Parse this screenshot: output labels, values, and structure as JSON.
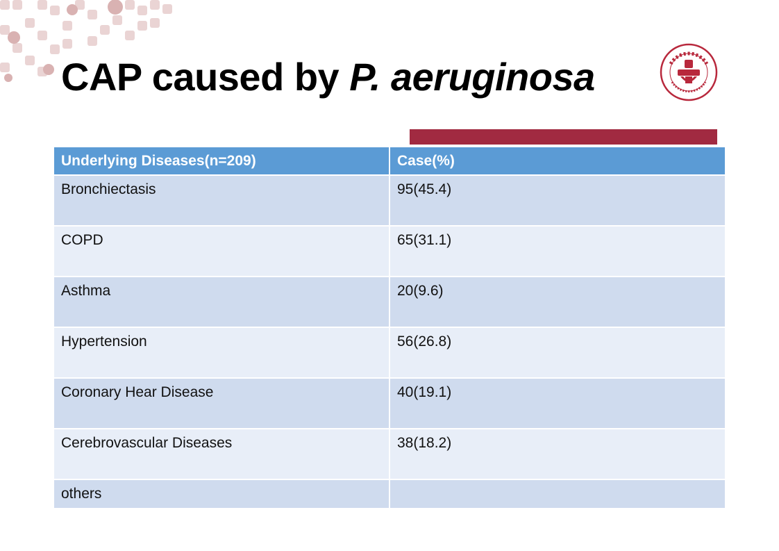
{
  "slide": {
    "title_main": "CAP caused by ",
    "title_italic": "P. aeruginosa",
    "logo_icon": "hospital-logo-icon",
    "accent_color": "#a12a41",
    "header_color": "#5b9bd5"
  },
  "table": {
    "headers": [
      "Underlying Diseases(n=209)",
      "Case(%)"
    ],
    "rows": [
      [
        "Bronchiectasis",
        "95(45.4)"
      ],
      [
        "COPD",
        "65(31.1)"
      ],
      [
        "Asthma",
        "20(9.6)"
      ],
      [
        "Hypertension",
        "56(26.8)"
      ],
      [
        "Coronary Hear Disease",
        "40(19.1)"
      ],
      [
        "Cerebrovascular Diseases",
        "38(18.2)"
      ],
      [
        "others",
        ""
      ]
    ]
  }
}
